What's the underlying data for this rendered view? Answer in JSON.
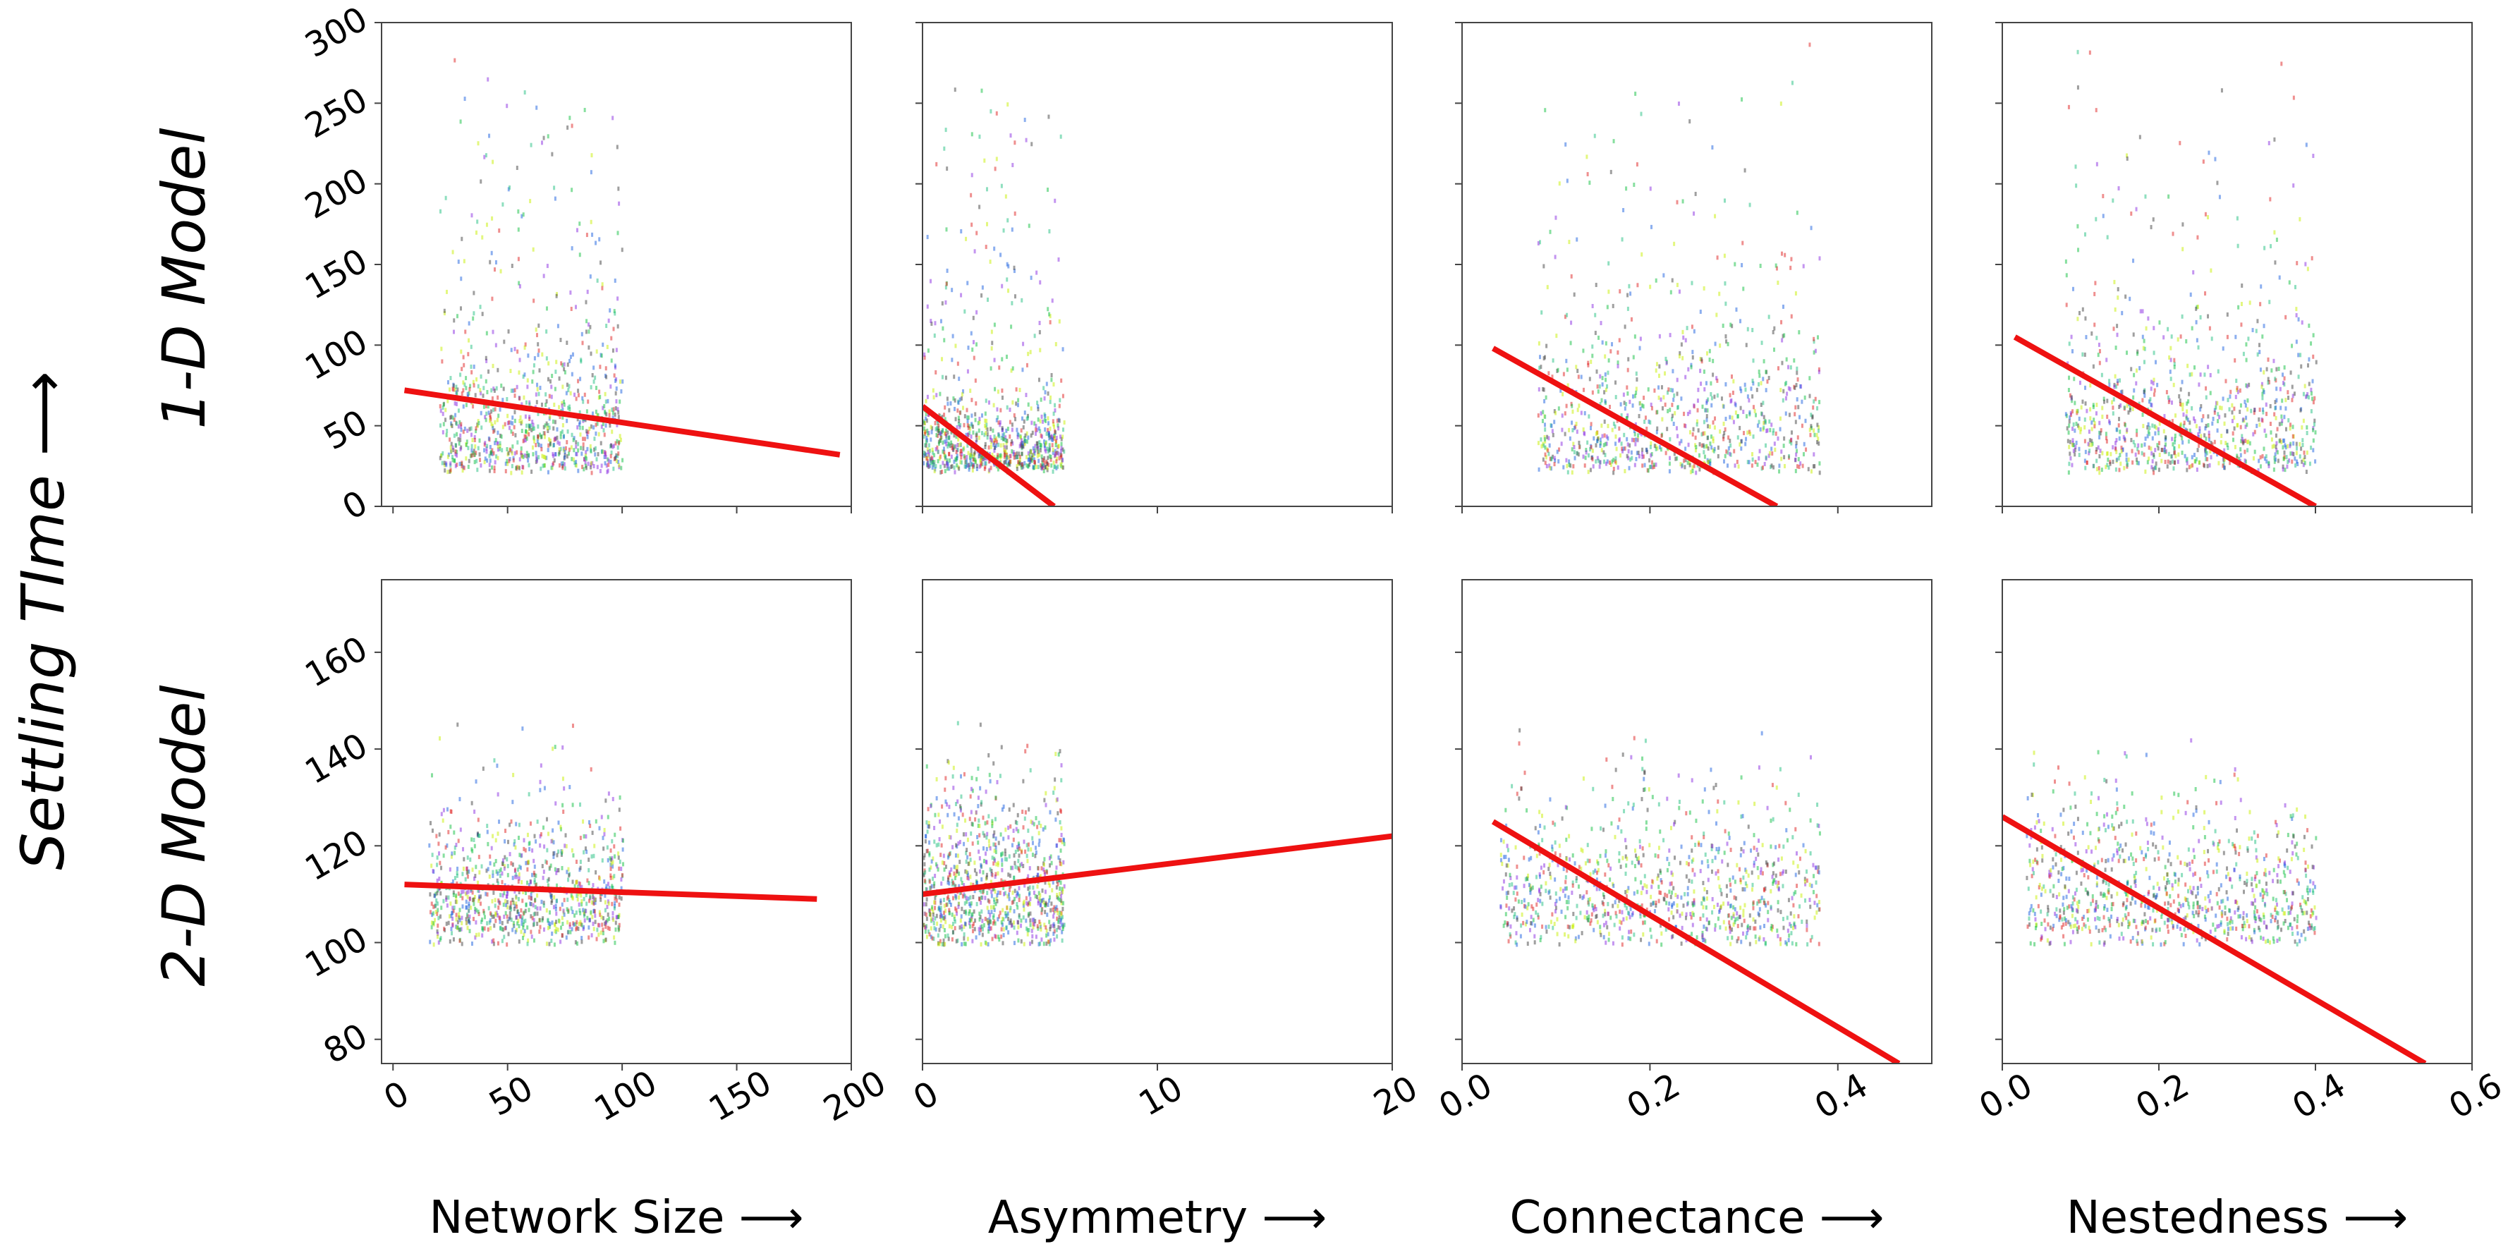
{
  "figure": {
    "y_title": "Settling TIme ⟶",
    "row_labels": [
      "1-D Model",
      "2-D Model"
    ],
    "col_labels": [
      "Network Size ⟶",
      "Asymmetry ⟶",
      "Connectance ⟶",
      "Nestedness ⟶"
    ],
    "fit_color": "#ee1111",
    "series_colors": [
      "#e02020",
      "#10c040",
      "#1a60e0",
      "#8a2be2",
      "#c8f000",
      "#404040",
      "#20c080"
    ]
  },
  "chart_data": [
    {
      "type": "scatter",
      "row": 0,
      "col": 0,
      "xlabel": "Network Size ⟶",
      "ylabel": "Settling TIme ⟶",
      "xlim": [
        -5,
        200
      ],
      "ylim": [
        0,
        300
      ],
      "xticks": [
        0,
        50,
        100,
        150,
        200
      ],
      "yticks": [
        0,
        50,
        100,
        150,
        200,
        250,
        300
      ],
      "xtick_labels_shown": false,
      "ytick_labels_shown": true,
      "cloud": {
        "x_range": [
          20,
          100
        ],
        "y_range": [
          22,
          300
        ],
        "dense_y_range": [
          25,
          120
        ],
        "outlier_y_max": 300
      },
      "fit_line": {
        "x": [
          5,
          195
        ],
        "y": [
          72,
          32
        ]
      }
    },
    {
      "type": "scatter",
      "row": 0,
      "col": 1,
      "xlabel": "Asymmetry ⟶",
      "ylabel": "Settling TIme ⟶",
      "xlim": [
        0,
        20
      ],
      "ylim": [
        0,
        300
      ],
      "xticks": [
        0,
        10,
        20
      ],
      "yticks": [
        0,
        50,
        100,
        150,
        200,
        250,
        300
      ],
      "xtick_labels_shown": false,
      "ytick_labels_shown": false,
      "cloud": {
        "x_range": [
          0,
          6
        ],
        "y_range": [
          22,
          300
        ],
        "dense_y_range": [
          25,
          80
        ],
        "outlier_y_max": 300
      },
      "fit_line": {
        "x": [
          0,
          5.6
        ],
        "y": [
          62,
          0
        ]
      }
    },
    {
      "type": "scatter",
      "row": 0,
      "col": 2,
      "xlabel": "Connectance ⟶",
      "ylabel": "Settling TIme ⟶",
      "xlim": [
        0,
        0.5
      ],
      "ylim": [
        0,
        300
      ],
      "xticks": [
        0.0,
        0.2,
        0.4
      ],
      "yticks": [
        0,
        50,
        100,
        150,
        200,
        250,
        300
      ],
      "xtick_labels_shown": false,
      "ytick_labels_shown": false,
      "cloud": {
        "x_range": [
          0.08,
          0.38
        ],
        "y_range": [
          22,
          300
        ],
        "dense_y_range": [
          25,
          130
        ],
        "outlier_y_max": 300
      },
      "fit_line": {
        "x": [
          0.033,
          0.335
        ],
        "y": [
          98,
          0
        ]
      }
    },
    {
      "type": "scatter",
      "row": 0,
      "col": 3,
      "xlabel": "Nestedness ⟶",
      "ylabel": "Settling TIme ⟶",
      "xlim": [
        0,
        0.6
      ],
      "ylim": [
        0,
        300
      ],
      "xticks": [
        0.0,
        0.2,
        0.4,
        0.6
      ],
      "yticks": [
        0,
        50,
        100,
        150,
        200,
        250,
        300
      ],
      "xtick_labels_shown": false,
      "ytick_labels_shown": false,
      "cloud": {
        "x_range": [
          0.08,
          0.4
        ],
        "y_range": [
          22,
          300
        ],
        "dense_y_range": [
          25,
          130
        ],
        "outlier_y_max": 300
      },
      "fit_line": {
        "x": [
          0.016,
          0.4
        ],
        "y": [
          105,
          0
        ]
      }
    },
    {
      "type": "scatter",
      "row": 1,
      "col": 0,
      "xlabel": "Network Size ⟶",
      "ylabel": "Settling TIme ⟶",
      "xlim": [
        -5,
        200
      ],
      "ylim": [
        75,
        175
      ],
      "xticks": [
        0,
        50,
        100,
        150,
        200
      ],
      "yticks": [
        80,
        100,
        120,
        140,
        160
      ],
      "xtick_labels_shown": true,
      "ytick_labels_shown": true,
      "cloud": {
        "x_range": [
          15,
          100
        ],
        "y_range": [
          100,
          146
        ],
        "dense_y_range": [
          103,
          135
        ],
        "outlier_y_max": 146
      },
      "fit_line": {
        "x": [
          5,
          185
        ],
        "y": [
          112,
          109
        ]
      }
    },
    {
      "type": "scatter",
      "row": 1,
      "col": 1,
      "xlabel": "Asymmetry ⟶",
      "ylabel": "Settling TIme ⟶",
      "xlim": [
        0,
        20
      ],
      "ylim": [
        75,
        175
      ],
      "xticks": [
        0,
        10,
        20
      ],
      "yticks": [
        80,
        100,
        120,
        140,
        160
      ],
      "xtick_labels_shown": true,
      "ytick_labels_shown": false,
      "cloud": {
        "x_range": [
          0,
          6
        ],
        "y_range": [
          100,
          146
        ],
        "dense_y_range": [
          103,
          140
        ],
        "outlier_y_max": 146
      },
      "fit_line": {
        "x": [
          0,
          20
        ],
        "y": [
          110,
          122
        ]
      }
    },
    {
      "type": "scatter",
      "row": 1,
      "col": 2,
      "xlabel": "Connectance ⟶",
      "ylabel": "Settling TIme ⟶",
      "xlim": [
        0,
        0.5
      ],
      "ylim": [
        75,
        175
      ],
      "xticks": [
        0.0,
        0.2,
        0.4
      ],
      "yticks": [
        80,
        100,
        120,
        140,
        160
      ],
      "xtick_labels_shown": true,
      "ytick_labels_shown": false,
      "cloud": {
        "x_range": [
          0.04,
          0.38
        ],
        "y_range": [
          100,
          146
        ],
        "dense_y_range": [
          103,
          140
        ],
        "outlier_y_max": 146
      },
      "fit_line": {
        "x": [
          0.033,
          0.465
        ],
        "y": [
          125,
          75
        ]
      }
    },
    {
      "type": "scatter",
      "row": 1,
      "col": 3,
      "xlabel": "Nestedness ⟶",
      "ylabel": "Settling TIme ⟶",
      "xlim": [
        0,
        0.6
      ],
      "ylim": [
        75,
        175
      ],
      "xticks": [
        0.0,
        0.2,
        0.4,
        0.6
      ],
      "yticks": [
        80,
        100,
        120,
        140,
        160
      ],
      "xtick_labels_shown": true,
      "ytick_labels_shown": false,
      "cloud": {
        "x_range": [
          0.03,
          0.4
        ],
        "y_range": [
          100,
          146
        ],
        "dense_y_range": [
          103,
          140
        ],
        "outlier_y_max": 146
      },
      "fit_line": {
        "x": [
          0.0,
          0.54
        ],
        "y": [
          126,
          75
        ]
      }
    }
  ]
}
